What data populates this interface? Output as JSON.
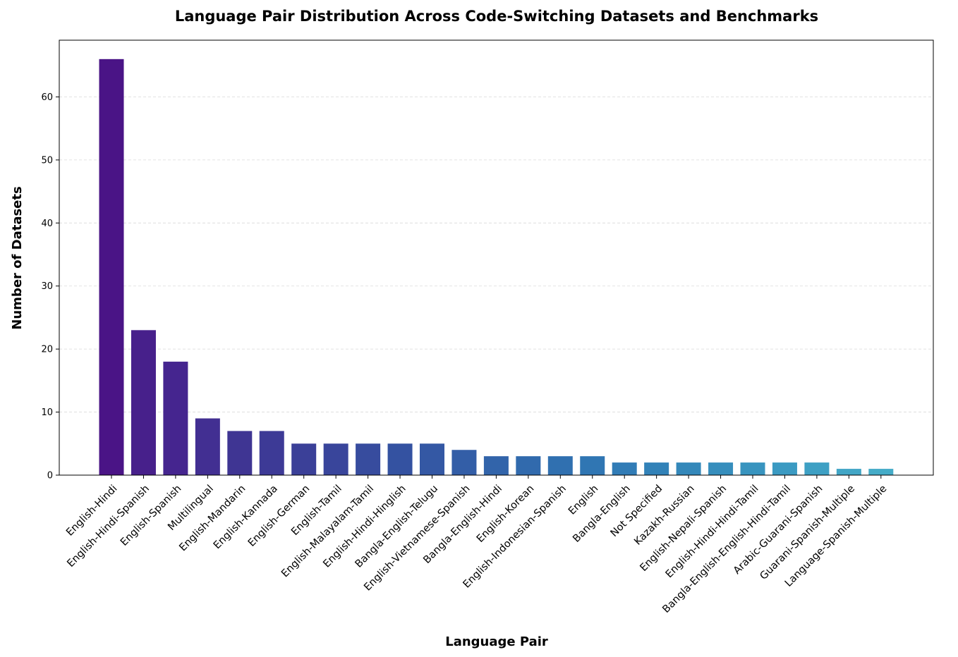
{
  "chart_data": {
    "type": "bar",
    "title": "Language Pair Distribution Across Code-Switching Datasets and Benchmarks",
    "xlabel": "Language Pair",
    "ylabel": "Number of Datasets",
    "ylim": [
      0,
      69
    ],
    "yticks": [
      0,
      10,
      20,
      30,
      40,
      50,
      60
    ],
    "grid": "y-dashed",
    "legend": "none",
    "categories": [
      "English-Hindi",
      "English-Hindi-Spanish",
      "English-Spanish",
      "Multilingual",
      "English-Mandarin",
      "English-Kannada",
      "English-German",
      "English-Tamil",
      "English-Malayalam-Tamil",
      "English-Hindi-Hinglish",
      "Bangla-English-Telugu",
      "English-Vietnamese-Spanish",
      "Bangla-English-Hindi",
      "English-Korean",
      "English-Indonesian-Spanish",
      "English",
      "Bangla-English",
      "Not Specified",
      "Kazakh-Russian",
      "English-Nepali-Spanish",
      "English-Hindi-Hindi-Tamil",
      "Bangla-English-English-Hindi-Tamil",
      "Arabic-Guarani-Spanish",
      "Guarani-Spanish-Multiple",
      "Language-Spanish-Multiple"
    ],
    "values": [
      66,
      23,
      18,
      9,
      7,
      7,
      5,
      5,
      5,
      5,
      5,
      4,
      3,
      3,
      3,
      3,
      2,
      2,
      2,
      2,
      2,
      2,
      2,
      1,
      1
    ],
    "colors": [
      "#4a1486",
      "#47208b",
      "#45258f",
      "#422f92",
      "#3f3593",
      "#3d3a96",
      "#3b4098",
      "#39459b",
      "#374c9e",
      "#3452a1",
      "#3458a4",
      "#335ea7",
      "#3264aa",
      "#316aad",
      "#3070b0",
      "#3076b3",
      "#317cb6",
      "#3282b8",
      "#3488ba",
      "#368ebd",
      "#3894bf",
      "#3b9ac2",
      "#3ea0c4",
      "#42a6c6",
      "#45acc8"
    ]
  }
}
